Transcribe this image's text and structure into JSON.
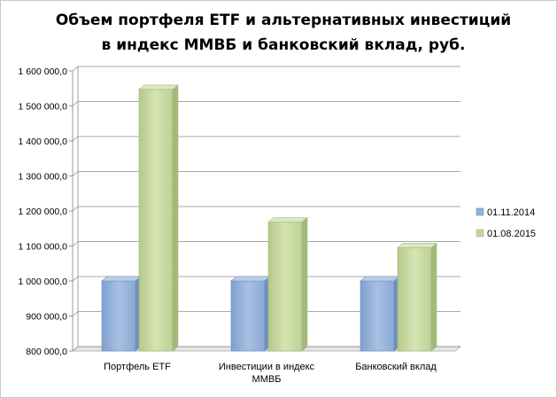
{
  "chart_data": {
    "type": "bar",
    "title_lines": [
      "Объем портфеля ETF и альтернативных  инвестиций",
      "в индекс ММВБ и банковский  вклад,  руб."
    ],
    "categories": [
      [
        "Портфель ETF"
      ],
      [
        "Инвестиции в индекс",
        "ММВБ"
      ],
      [
        "Банковский вклад"
      ]
    ],
    "series": [
      {
        "name": "01.11.2014",
        "values": [
          1000000,
          1000000,
          1000000
        ],
        "color": "#95b3d7"
      },
      {
        "name": "01.08.2015",
        "values": [
          1547000,
          1168000,
          1095000
        ],
        "color": "#c3d69b"
      }
    ],
    "ylim": [
      800000,
      1600000
    ],
    "y_ticks": [
      800000,
      900000,
      1000000,
      1100000,
      1200000,
      1300000,
      1400000,
      1500000,
      1600000
    ],
    "y_tick_labels": [
      "800 000,0",
      "900 000,0",
      "1 000 000,0",
      "1 100 000,0",
      "1 200 000,0",
      "1 300 000,0",
      "1 400 000,0",
      "1 500 000,0",
      "1 600 000,0"
    ],
    "grid": true,
    "legend_position": "right",
    "style": "3d-column"
  }
}
